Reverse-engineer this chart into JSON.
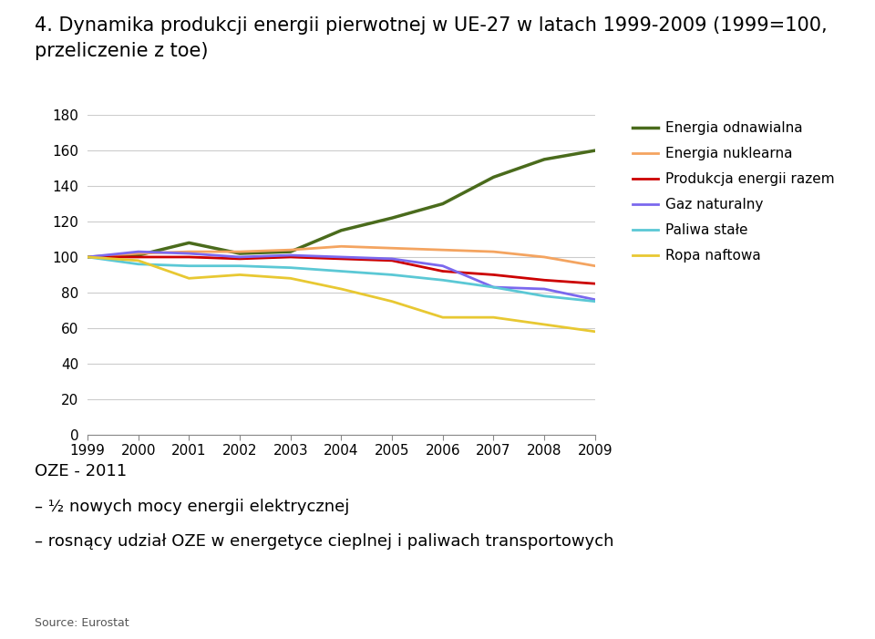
{
  "title_line1": "4. Dynamika produkcji energii pierwotnej w UE-27 w latach 1999-2009 (1999=100,",
  "title_line2": "przeliczenie z toe)",
  "years": [
    1999,
    2000,
    2001,
    2002,
    2003,
    2004,
    2005,
    2006,
    2007,
    2008,
    2009
  ],
  "series": {
    "Energia odnawialna": {
      "values": [
        100,
        101,
        108,
        102,
        103,
        115,
        122,
        130,
        145,
        155,
        160
      ],
      "color": "#4a6b1c",
      "linewidth": 2.5
    },
    "Energia nuklearna": {
      "values": [
        100,
        102,
        103,
        103,
        104,
        106,
        105,
        104,
        103,
        100,
        95
      ],
      "color": "#f4a460",
      "linewidth": 2.0
    },
    "Produkcja energii razem": {
      "values": [
        100,
        100,
        100,
        99,
        100,
        99,
        98,
        92,
        90,
        87,
        85
      ],
      "color": "#cc0000",
      "linewidth": 2.0
    },
    "Gaz naturalny": {
      "values": [
        100,
        103,
        102,
        100,
        101,
        100,
        99,
        95,
        83,
        82,
        76
      ],
      "color": "#7b68ee",
      "linewidth": 2.0
    },
    "Paliwa stałe": {
      "values": [
        100,
        96,
        95,
        95,
        94,
        92,
        90,
        87,
        83,
        78,
        75
      ],
      "color": "#5bc8d5",
      "linewidth": 2.0
    },
    "Ropa naftowa": {
      "values": [
        100,
        98,
        88,
        90,
        88,
        82,
        75,
        66,
        66,
        62,
        58
      ],
      "color": "#e8c832",
      "linewidth": 2.0
    }
  },
  "ylim": [
    0,
    180
  ],
  "yticks": [
    0,
    20,
    40,
    60,
    80,
    100,
    120,
    140,
    160,
    180
  ],
  "grid_color": "#cccccc",
  "background_color": "#ffffff",
  "annotation_title": "OZE - 2011",
  "annotation_line1": "– ½ nowych mocy energii elektrycznej",
  "annotation_line2": "– rosnący udział OZE w energetyce cieplnej i paliwach transportowych",
  "source_text": "Source: Eurostat",
  "title_fontsize": 15,
  "axis_fontsize": 11,
  "legend_fontsize": 11,
  "annotation_fontsize": 13,
  "source_fontsize": 9
}
